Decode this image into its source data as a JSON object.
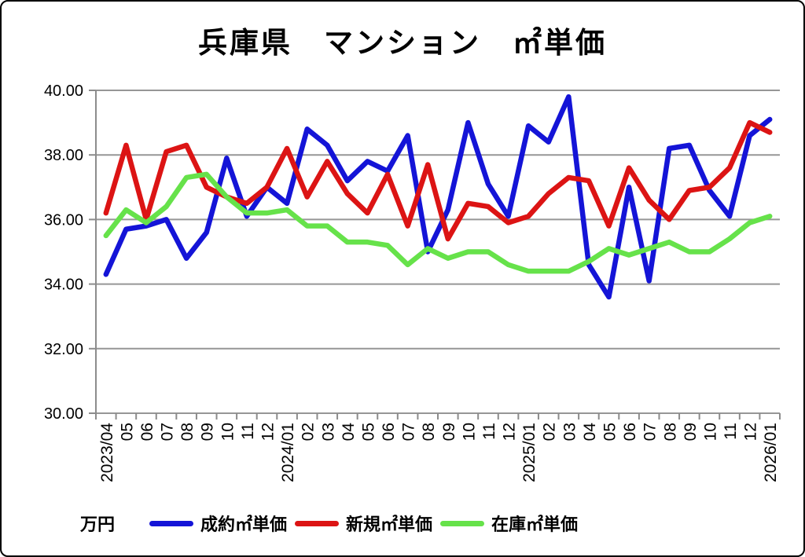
{
  "chart_data": {
    "type": "line",
    "title": "兵庫県　マンション　㎡単価",
    "unit_label": "万円",
    "x": [
      "2023/04",
      "05",
      "06",
      "07",
      "08",
      "09",
      "10",
      "11",
      "12",
      "2024/01",
      "02",
      "03",
      "04",
      "05",
      "06",
      "07",
      "08",
      "09",
      "10",
      "11",
      "12",
      "2025/01",
      "02",
      "03",
      "04",
      "05",
      "06",
      "07",
      "08",
      "09",
      "10",
      "11",
      "12",
      "2026/01"
    ],
    "series": [
      {
        "name": "成約㎡単価",
        "color": "#1414d7",
        "values": [
          34.3,
          35.7,
          35.8,
          36.0,
          34.8,
          35.6,
          37.9,
          36.1,
          37.0,
          36.5,
          38.8,
          38.3,
          37.2,
          37.8,
          37.5,
          38.6,
          35.0,
          36.3,
          39.0,
          37.1,
          36.1,
          38.9,
          38.4,
          39.8,
          34.6,
          33.6,
          37.0,
          34.1,
          38.2,
          38.3,
          36.9,
          36.1,
          38.6,
          39.1
        ]
      },
      {
        "name": "新規㎡単価",
        "color": "#dc1414",
        "values": [
          36.2,
          38.3,
          36.0,
          38.1,
          38.3,
          37.0,
          36.7,
          36.5,
          37.0,
          38.2,
          36.7,
          37.8,
          36.8,
          36.2,
          37.4,
          35.8,
          37.7,
          35.4,
          36.5,
          36.4,
          35.9,
          36.1,
          36.8,
          37.3,
          37.2,
          35.8,
          37.6,
          36.6,
          36.0,
          36.9,
          37.0,
          37.6,
          39.0,
          38.7
        ]
      },
      {
        "name": "在庫㎡単価",
        "color": "#66e24a",
        "values": [
          35.5,
          36.3,
          35.9,
          36.4,
          37.3,
          37.4,
          36.7,
          36.2,
          36.2,
          36.3,
          35.8,
          35.8,
          35.3,
          35.3,
          35.2,
          34.6,
          35.1,
          34.8,
          35.0,
          35.0,
          34.6,
          34.4,
          34.4,
          34.4,
          34.7,
          35.1,
          34.9,
          35.1,
          35.3,
          35.0,
          35.0,
          35.4,
          35.9,
          36.1
        ]
      }
    ],
    "ylim": [
      30,
      40
    ],
    "ytick_step": 2,
    "ytick_decimals": 2,
    "grid": true,
    "legend_position": "bottom"
  },
  "style": {
    "grid_color": "#969696",
    "axis_color": "#8c8c8c",
    "text_color": "#000000",
    "background": "#ffffff",
    "line_width": 6.5
  }
}
